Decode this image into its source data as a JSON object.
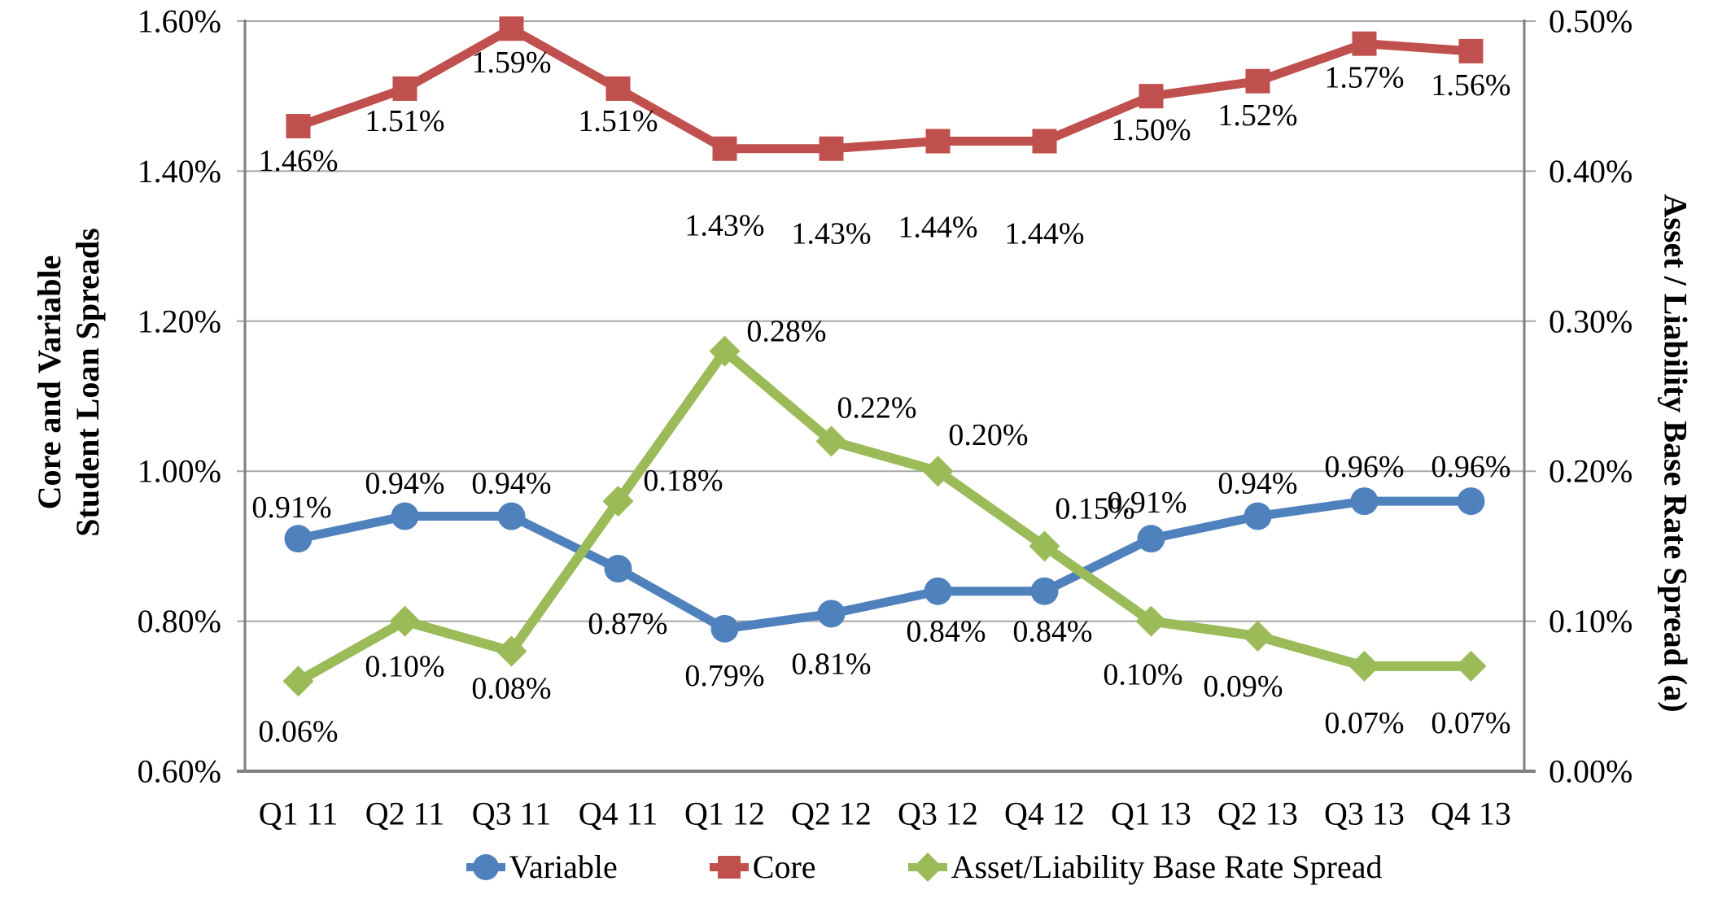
{
  "chart_data": {
    "type": "line",
    "title": "",
    "categories": [
      "Q1 11",
      "Q2 11",
      "Q3 11",
      "Q4 11",
      "Q1 12",
      "Q2 12",
      "Q3 12",
      "Q4 12",
      "Q1 13",
      "Q2 13",
      "Q3 13",
      "Q4 13"
    ],
    "series": [
      {
        "name": "Variable",
        "axis": "left",
        "color": "#4F81BD",
        "marker": "circle",
        "values": [
          0.91,
          0.94,
          0.94,
          0.87,
          0.79,
          0.81,
          0.84,
          0.84,
          0.91,
          0.94,
          0.96,
          0.96
        ],
        "labels": [
          "0.91%",
          "0.94%",
          "0.94%",
          "0.87%",
          "0.79%",
          "0.81%",
          "0.84%",
          "0.84%",
          "0.91%",
          "0.94%",
          "0.96%",
          "0.96%"
        ]
      },
      {
        "name": "Core",
        "axis": "left",
        "color": "#C0504D",
        "marker": "square",
        "values": [
          1.46,
          1.51,
          1.59,
          1.51,
          1.43,
          1.43,
          1.44,
          1.44,
          1.5,
          1.52,
          1.57,
          1.56
        ],
        "labels": [
          "1.46%",
          "1.51%",
          "1.59%",
          "1.51%",
          "1.43%",
          "1.43%",
          "1.44%",
          "1.44%",
          "1.50%",
          "1.52%",
          "1.57%",
          "1.56%"
        ]
      },
      {
        "name": "Asset/Liability Base Rate Spread",
        "axis": "right",
        "color": "#9BBB59",
        "marker": "diamond",
        "values": [
          0.06,
          0.1,
          0.08,
          0.18,
          0.28,
          0.22,
          0.2,
          0.15,
          0.1,
          0.09,
          0.07,
          0.07
        ],
        "labels": [
          "0.06%",
          "0.10%",
          "0.08%",
          "0.18%",
          "0.28%",
          "0.22%",
          "0.20%",
          "0.15%",
          "0.10%",
          "0.09%",
          "0.07%",
          "0.07%"
        ]
      }
    ],
    "axes": {
      "left": {
        "title_line1": "Core and Variable",
        "title_line2": "Student Loan Spreads",
        "min": 0.6,
        "max": 1.6,
        "ticks": [
          "1.60%",
          "1.40%",
          "1.20%",
          "1.00%",
          "0.80%",
          "0.60%"
        ]
      },
      "right": {
        "title": "Asset / Liability Base Rate Spread (a)",
        "min": 0.0,
        "max": 0.5,
        "ticks": [
          "0.50%",
          "0.40%",
          "0.30%",
          "0.20%",
          "0.10%",
          "0.00%"
        ]
      }
    },
    "grid": true,
    "legend_position": "bottom",
    "style": {
      "gridline_color": "#A6A6A6",
      "axis_line_color": "#7F7F7F",
      "text_color": "#000000",
      "background": "#FFFFFF"
    }
  }
}
